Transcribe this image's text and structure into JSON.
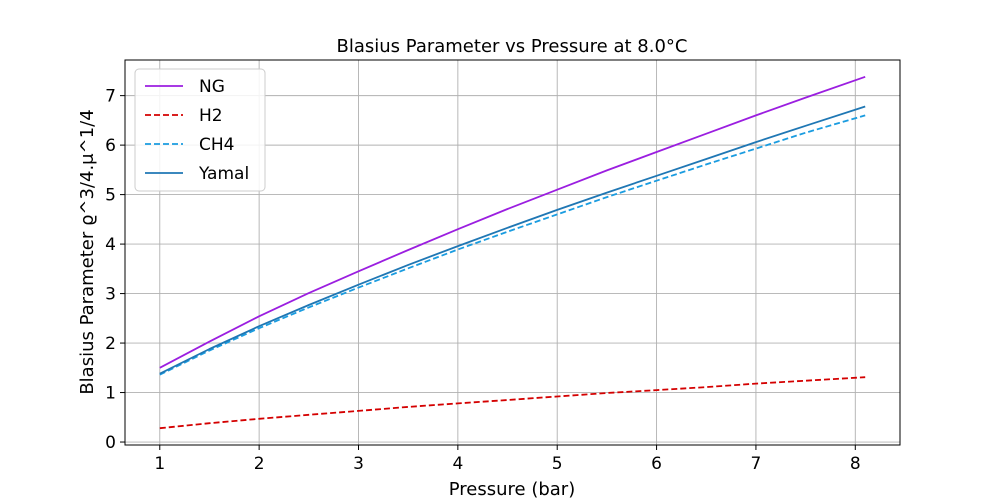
{
  "chart_data": {
    "type": "line",
    "title": "Blasius Parameter vs Pressure at  8.0°C",
    "xlabel": "Pressure (bar)",
    "ylabel": "Blasius Parameter ϱ^3/4.μ^1/4",
    "xlim": [
      0.65,
      8.45
    ],
    "ylim": [
      -0.06,
      7.72
    ],
    "xticks": [
      1,
      2,
      3,
      4,
      5,
      6,
      7,
      8
    ],
    "yticks": [
      0,
      1,
      2,
      3,
      4,
      5,
      6,
      7
    ],
    "grid": true,
    "legend_position": "upper-left",
    "series": [
      {
        "name": "NG",
        "color": "#9b1ee0",
        "style": "solid",
        "x": [
          1.0,
          1.5,
          2.0,
          2.5,
          3.0,
          3.5,
          4.0,
          4.5,
          5.0,
          5.5,
          6.0,
          6.5,
          7.0,
          7.5,
          8.1
        ],
        "y": [
          1.5,
          2.03,
          2.54,
          3.01,
          3.45,
          3.88,
          4.3,
          4.71,
          5.1,
          5.49,
          5.86,
          6.23,
          6.6,
          6.96,
          7.38
        ]
      },
      {
        "name": "H2",
        "color": "#d40000",
        "style": "dashed",
        "x": [
          1.0,
          1.5,
          2.0,
          2.5,
          3.0,
          3.5,
          4.0,
          4.5,
          5.0,
          5.5,
          6.0,
          6.5,
          7.0,
          7.5,
          8.1
        ],
        "y": [
          0.28,
          0.38,
          0.47,
          0.55,
          0.63,
          0.71,
          0.78,
          0.85,
          0.92,
          0.99,
          1.05,
          1.11,
          1.18,
          1.24,
          1.31
        ]
      },
      {
        "name": "CH4",
        "color": "#1a9ce0",
        "style": "dashed",
        "x": [
          1.0,
          1.5,
          2.0,
          2.5,
          3.0,
          3.5,
          4.0,
          4.5,
          5.0,
          5.5,
          6.0,
          6.5,
          7.0,
          7.5,
          8.1
        ],
        "y": [
          1.36,
          1.85,
          2.3,
          2.72,
          3.12,
          3.51,
          3.89,
          4.25,
          4.6,
          4.95,
          5.28,
          5.61,
          5.93,
          6.25,
          6.6
        ]
      },
      {
        "name": "Yamal",
        "color": "#1f77b4",
        "style": "solid",
        "x": [
          1.0,
          1.5,
          2.0,
          2.5,
          3.0,
          3.5,
          4.0,
          4.5,
          5.0,
          5.5,
          6.0,
          6.5,
          7.0,
          7.5,
          8.1
        ],
        "y": [
          1.38,
          1.88,
          2.34,
          2.77,
          3.18,
          3.58,
          3.96,
          4.33,
          4.69,
          5.04,
          5.38,
          5.72,
          6.06,
          6.39,
          6.78
        ]
      }
    ]
  }
}
